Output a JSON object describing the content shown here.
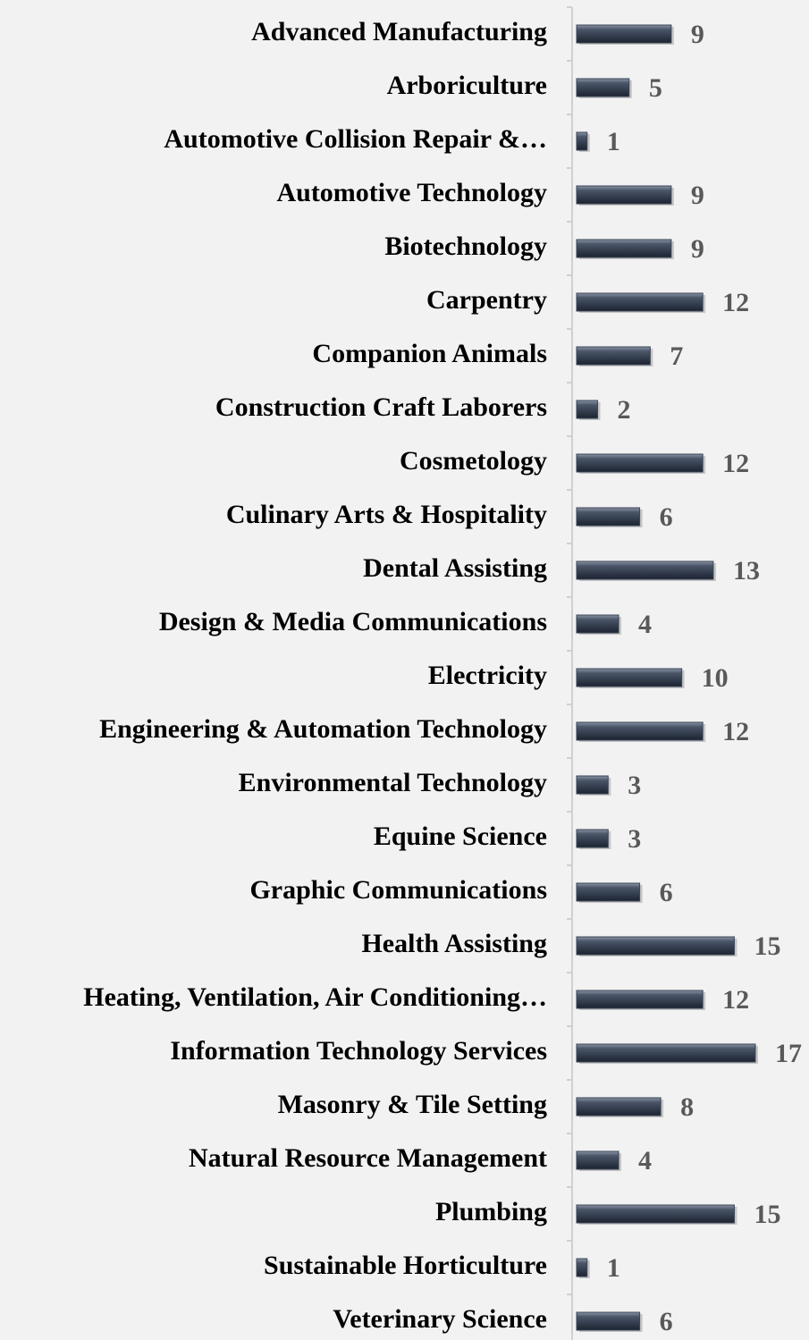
{
  "chart_data": {
    "type": "barh",
    "categories": [
      "Advanced Manufacturing",
      "Arboriculture",
      "Automotive Collision Repair &…",
      "Automotive Technology",
      "Biotechnology",
      "Carpentry",
      "Companion Animals",
      "Construction Craft Laborers",
      "Cosmetology",
      "Culinary Arts & Hospitality",
      "Dental Assisting",
      "Design & Media Communications",
      "Electricity",
      "Engineering & Automation Technology",
      "Environmental Technology",
      "Equine Science",
      "Graphic Communications",
      "Health Assisting",
      "Heating, Ventilation, Air Conditioning…",
      "Information Technology Services",
      "Masonry & Tile Setting",
      "Natural Resource Management",
      "Plumbing",
      "Sustainable Horticulture",
      "Veterinary Science"
    ],
    "values": [
      9,
      5,
      1,
      9,
      9,
      12,
      7,
      2,
      12,
      6,
      13,
      4,
      10,
      12,
      3,
      3,
      6,
      15,
      12,
      17,
      8,
      4,
      15,
      1,
      6
    ],
    "color": "#3b4657"
  }
}
